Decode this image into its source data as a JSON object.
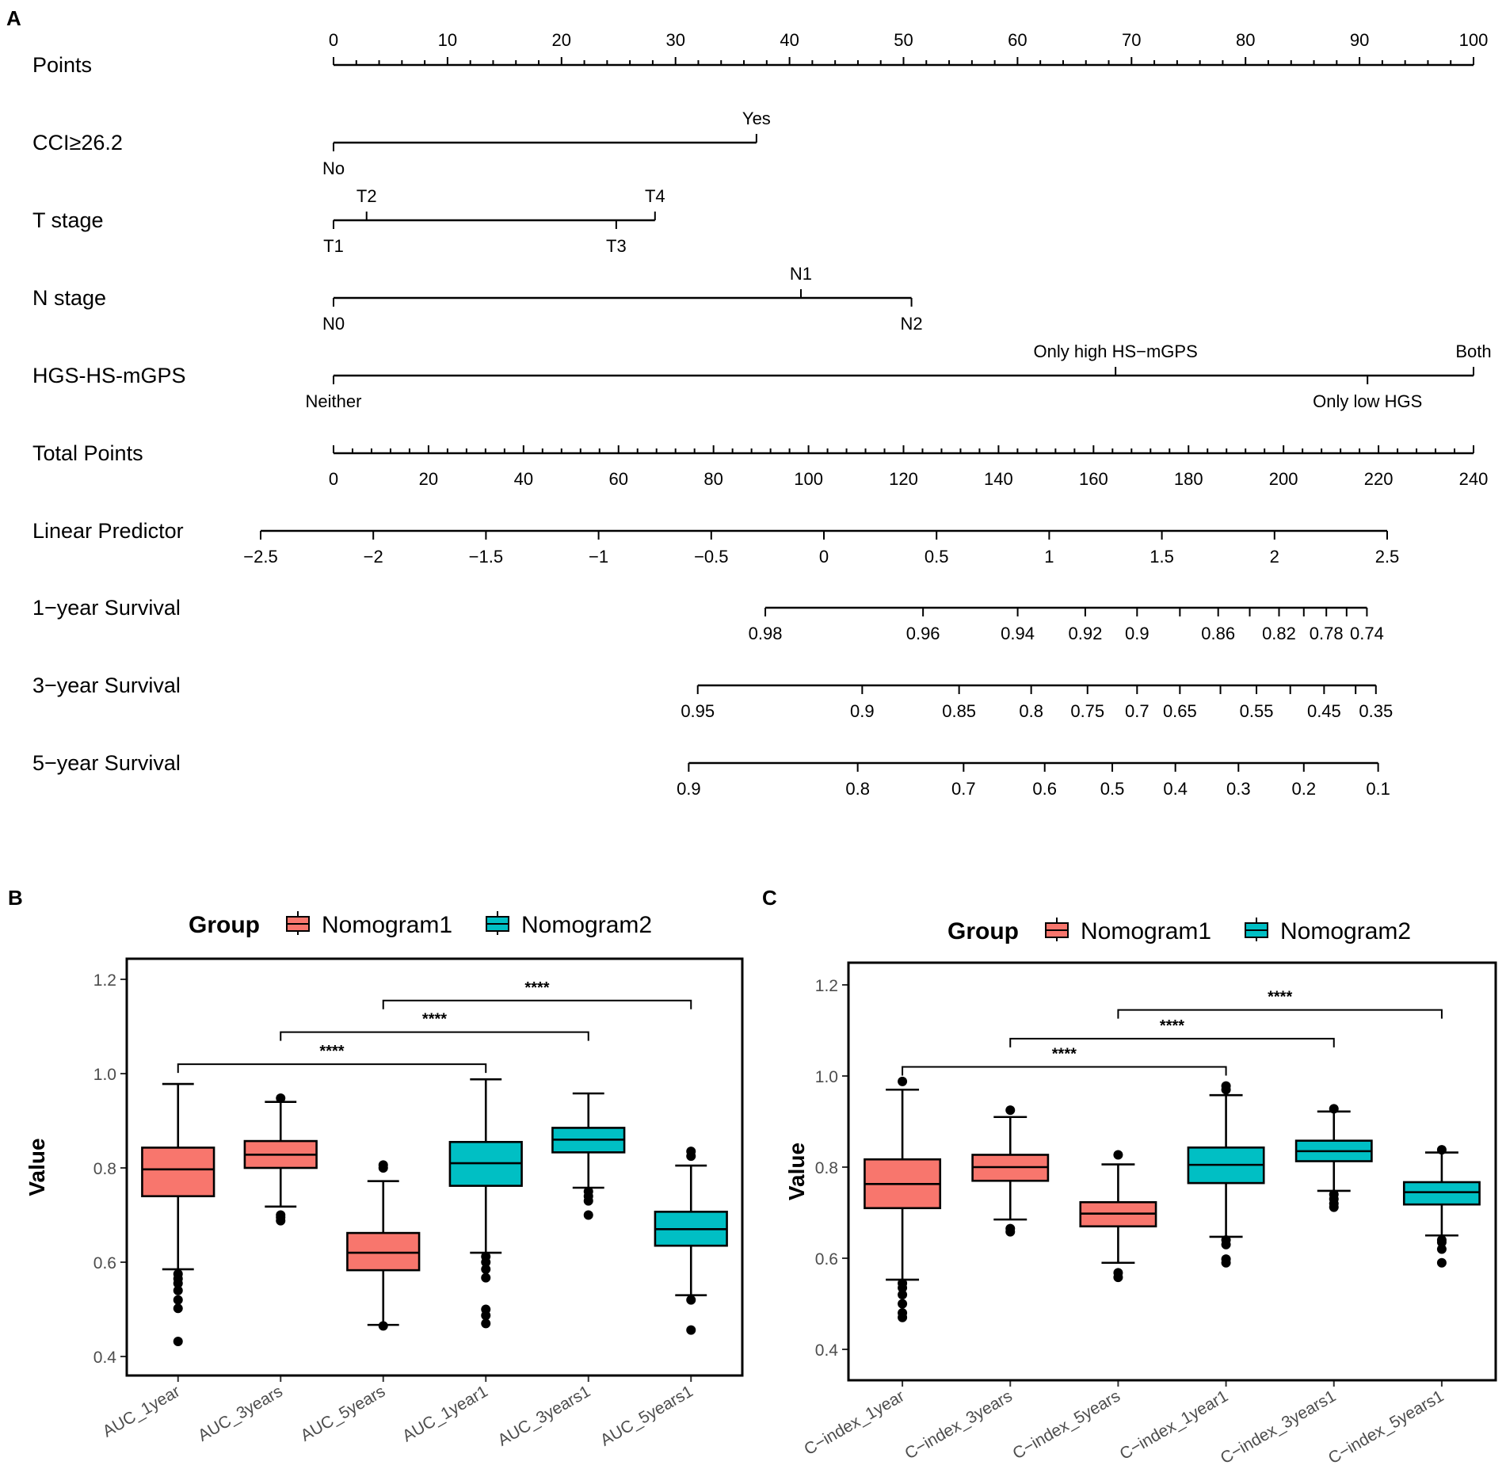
{
  "panels": {
    "a": "A",
    "b": "B",
    "c": "C"
  },
  "nomogram": {
    "scales": [
      {
        "label": "Points",
        "min": 0,
        "max": 100,
        "major": [
          0,
          10,
          20,
          30,
          40,
          50,
          60,
          70,
          80,
          90,
          100
        ],
        "minor_step": 2,
        "labels_above": true
      },
      {
        "label": "Total Points",
        "min": 0,
        "max": 240,
        "major": [
          0,
          20,
          40,
          60,
          80,
          100,
          120,
          140,
          160,
          180,
          200,
          220,
          240
        ],
        "minor_step": 4,
        "labels_above": false
      },
      {
        "label": "Linear Predictor",
        "min": -2.5,
        "max": 2.5,
        "major": [
          -2.5,
          -2,
          -1.5,
          -1,
          -0.5,
          0,
          0.5,
          1,
          1.5,
          2,
          2.5
        ],
        "major_text": [
          "−2.5",
          "−2",
          "−1.5",
          "−1",
          "−0.5",
          "0",
          "0.5",
          "1",
          "1.5",
          "2",
          "2.5"
        ],
        "labels_above": false
      }
    ],
    "predictors": [
      {
        "label": "CCI≥26.2",
        "levels": [
          {
            "name": "No",
            "points": 0,
            "pos": "below"
          },
          {
            "name": "Yes",
            "points": 37.1,
            "pos": "above"
          }
        ]
      },
      {
        "label": "T stage",
        "levels": [
          {
            "name": "T1",
            "points": 0,
            "pos": "below"
          },
          {
            "name": "T2",
            "points": 2.9,
            "pos": "above"
          },
          {
            "name": "T3",
            "points": 24.8,
            "pos": "below"
          },
          {
            "name": "T4",
            "points": 28.2,
            "pos": "above"
          }
        ]
      },
      {
        "label": "N stage",
        "levels": [
          {
            "name": "N0",
            "points": 0,
            "pos": "below"
          },
          {
            "name": "N1",
            "points": 41.0,
            "pos": "above"
          },
          {
            "name": "N2",
            "points": 50.7,
            "pos": "below"
          }
        ]
      },
      {
        "label": "HGS-HS-mGPS",
        "levels": [
          {
            "name": "Neither",
            "points": 0,
            "pos": "below"
          },
          {
            "name": "Only high HS−mGPS",
            "points": 68.6,
            "pos": "above"
          },
          {
            "name": "Only low HGS",
            "points": 90.7,
            "pos": "below"
          },
          {
            "name": "Both",
            "points": 100,
            "pos": "above"
          }
        ]
      }
    ],
    "survival": [
      {
        "label": "1−year Survival",
        "ticks": [
          {
            "lp": -0.26,
            "text": "0.98"
          },
          {
            "lp": 0.44,
            "text": "0.96"
          },
          {
            "lp": 0.86,
            "text": "0.94"
          },
          {
            "lp": 1.16,
            "text": "0.92"
          },
          {
            "lp": 1.39,
            "text": "0.9"
          },
          {
            "lp": 1.58,
            "text": ""
          },
          {
            "lp": 1.75,
            "text": "0.86"
          },
          {
            "lp": 1.89,
            "text": ""
          },
          {
            "lp": 2.02,
            "text": "0.82"
          },
          {
            "lp": 2.13,
            "text": ""
          },
          {
            "lp": 2.23,
            "text": "0.78"
          },
          {
            "lp": 2.32,
            "text": ""
          },
          {
            "lp": 2.41,
            "text": "0.74"
          }
        ]
      },
      {
        "label": "3−year Survival",
        "ticks": [
          {
            "lp": -0.56,
            "text": "0.95"
          },
          {
            "lp": 0.17,
            "text": "0.9"
          },
          {
            "lp": 0.6,
            "text": "0.85"
          },
          {
            "lp": 0.92,
            "text": "0.8"
          },
          {
            "lp": 1.17,
            "text": "0.75"
          },
          {
            "lp": 1.39,
            "text": "0.7"
          },
          {
            "lp": 1.58,
            "text": "0.65"
          },
          {
            "lp": 1.76,
            "text": ""
          },
          {
            "lp": 1.92,
            "text": "0.55"
          },
          {
            "lp": 2.07,
            "text": ""
          },
          {
            "lp": 2.22,
            "text": "0.45"
          },
          {
            "lp": 2.36,
            "text": ""
          },
          {
            "lp": 2.45,
            "text": "0.35"
          }
        ]
      },
      {
        "label": "5−year Survival",
        "ticks": [
          {
            "lp": -0.6,
            "text": "0.9"
          },
          {
            "lp": 0.15,
            "text": "0.8"
          },
          {
            "lp": 0.62,
            "text": "0.7"
          },
          {
            "lp": 0.98,
            "text": "0.6"
          },
          {
            "lp": 1.28,
            "text": "0.5"
          },
          {
            "lp": 1.56,
            "text": "0.4"
          },
          {
            "lp": 1.84,
            "text": "0.3"
          },
          {
            "lp": 2.13,
            "text": "0.2"
          },
          {
            "lp": 2.46,
            "text": "0.1"
          }
        ]
      }
    ]
  },
  "legend": {
    "title": "Group",
    "entries": [
      "Nomogram1",
      "Nomogram2"
    ]
  },
  "colors": {
    "Nomogram1": "#f8766d",
    "Nomogram2": "#00bfc4",
    "ink": "#000000"
  },
  "chart_data": [
    {
      "id": "A",
      "type": "nomogram",
      "title": "",
      "points_range": [
        0,
        100
      ],
      "total_points_range": [
        0,
        240
      ],
      "linear_predictor_range": [
        -2.5,
        2.5
      ]
    },
    {
      "id": "B",
      "type": "box",
      "ylabel": "Value",
      "ylim": [
        0.4,
        1.2
      ],
      "yticks": [
        0.4,
        0.6,
        0.8,
        1.0,
        1.2
      ],
      "ytick_text": [
        "0.4",
        "0.6",
        "0.8",
        "1.0",
        "1.2"
      ],
      "categories": [
        "AUC_1year",
        "AUC_3years",
        "AUC_5years",
        "AUC_1year1",
        "AUC_3years1",
        "AUC_5years1"
      ],
      "groups": [
        "Nomogram1",
        "Nomogram1",
        "Nomogram1",
        "Nomogram2",
        "Nomogram2",
        "Nomogram2"
      ],
      "boxes": [
        {
          "whisker_low": 0.585,
          "q1": 0.74,
          "median": 0.797,
          "q3": 0.843,
          "whisker_high": 0.978,
          "outliers": [
            0.432,
            0.502,
            0.52,
            0.54,
            0.555,
            0.565,
            0.575
          ]
        },
        {
          "whisker_low": 0.718,
          "q1": 0.8,
          "median": 0.828,
          "q3": 0.857,
          "whisker_high": 0.94,
          "outliers": [
            0.688,
            0.695,
            0.7,
            0.948
          ]
        },
        {
          "whisker_low": 0.467,
          "q1": 0.583,
          "median": 0.62,
          "q3": 0.662,
          "whisker_high": 0.772,
          "outliers": [
            0.465,
            0.8,
            0.806
          ]
        },
        {
          "whisker_low": 0.62,
          "q1": 0.762,
          "median": 0.81,
          "q3": 0.855,
          "whisker_high": 0.988,
          "outliers": [
            0.47,
            0.487,
            0.5,
            0.567,
            0.585,
            0.6,
            0.612
          ]
        },
        {
          "whisker_low": 0.758,
          "q1": 0.833,
          "median": 0.86,
          "q3": 0.885,
          "whisker_high": 0.958,
          "outliers": [
            0.7,
            0.73,
            0.74,
            0.75
          ]
        },
        {
          "whisker_low": 0.53,
          "q1": 0.635,
          "median": 0.67,
          "q3": 0.707,
          "whisker_high": 0.805,
          "outliers": [
            0.456,
            0.52,
            0.825,
            0.835
          ]
        }
      ],
      "comparisons": [
        {
          "from": 0,
          "to": 3,
          "y": 1.02,
          "label": "****"
        },
        {
          "from": 1,
          "to": 4,
          "y": 1.088,
          "label": "****"
        },
        {
          "from": 2,
          "to": 5,
          "y": 1.155,
          "label": "****"
        }
      ]
    },
    {
      "id": "C",
      "type": "box",
      "ylabel": "Value",
      "ylim": [
        0.4,
        1.2
      ],
      "yticks": [
        0.4,
        0.6,
        0.8,
        1.0,
        1.2
      ],
      "ytick_text": [
        "0.4",
        "0.6",
        "0.8",
        "1.0",
        "1.2"
      ],
      "categories": [
        "C−index_1year",
        "C−index_3years",
        "C−index_5years",
        "C−index_1year1",
        "C−index_3years1",
        "C−index_5years1"
      ],
      "groups": [
        "Nomogram1",
        "Nomogram1",
        "Nomogram1",
        "Nomogram2",
        "Nomogram2",
        "Nomogram2"
      ],
      "boxes": [
        {
          "whisker_low": 0.553,
          "q1": 0.71,
          "median": 0.763,
          "q3": 0.817,
          "whisker_high": 0.97,
          "outliers": [
            0.47,
            0.48,
            0.5,
            0.52,
            0.535,
            0.545,
            0.988
          ]
        },
        {
          "whisker_low": 0.685,
          "q1": 0.77,
          "median": 0.8,
          "q3": 0.827,
          "whisker_high": 0.91,
          "outliers": [
            0.658,
            0.665,
            0.925
          ]
        },
        {
          "whisker_low": 0.59,
          "q1": 0.67,
          "median": 0.698,
          "q3": 0.723,
          "whisker_high": 0.806,
          "outliers": [
            0.558,
            0.568,
            0.827
          ]
        },
        {
          "whisker_low": 0.647,
          "q1": 0.765,
          "median": 0.805,
          "q3": 0.843,
          "whisker_high": 0.958,
          "outliers": [
            0.59,
            0.598,
            0.63,
            0.64,
            0.97,
            0.978
          ]
        },
        {
          "whisker_low": 0.748,
          "q1": 0.813,
          "median": 0.835,
          "q3": 0.858,
          "whisker_high": 0.922,
          "outliers": [
            0.712,
            0.72,
            0.73,
            0.74,
            0.928
          ]
        },
        {
          "whisker_low": 0.65,
          "q1": 0.718,
          "median": 0.745,
          "q3": 0.767,
          "whisker_high": 0.832,
          "outliers": [
            0.59,
            0.62,
            0.635,
            0.64,
            0.838
          ]
        }
      ],
      "comparisons": [
        {
          "from": 0,
          "to": 3,
          "y": 1.02,
          "label": "****"
        },
        {
          "from": 1,
          "to": 4,
          "y": 1.082,
          "label": "****"
        },
        {
          "from": 2,
          "to": 5,
          "y": 1.145,
          "label": "****"
        }
      ]
    }
  ]
}
